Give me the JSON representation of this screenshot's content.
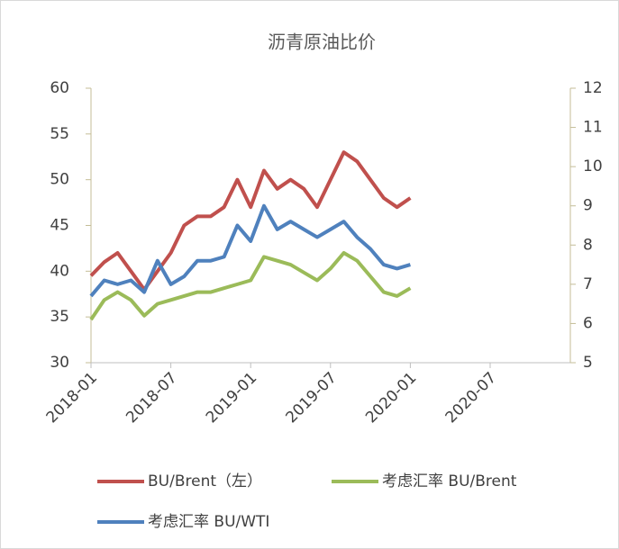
{
  "chart_data": {
    "type": "line",
    "title": "沥青原油比价",
    "x": [
      "2018-01",
      "2018-02",
      "2018-03",
      "2018-04",
      "2018-05",
      "2018-06",
      "2018-07",
      "2018-08",
      "2018-09",
      "2018-10",
      "2018-11",
      "2018-12",
      "2019-01",
      "2019-02",
      "2019-03",
      "2019-04",
      "2019-05",
      "2019-06",
      "2019-07",
      "2019-08",
      "2019-09",
      "2019-10",
      "2019-11",
      "2019-12",
      "2020-01"
    ],
    "xlim": [
      "2018-01",
      "2020-07"
    ],
    "xticks": [
      "2018-01",
      "2018-07",
      "2019-01",
      "2019-07",
      "2020-01",
      "2020-07"
    ],
    "ylim": [
      30,
      60
    ],
    "yticks": [
      30,
      35,
      40,
      45,
      50,
      55,
      60
    ],
    "y2lim": [
      5,
      12
    ],
    "y2ticks": [
      5,
      6,
      7,
      8,
      9,
      10,
      11,
      12
    ],
    "series": [
      {
        "name": "BU/Brent（左）",
        "color": "#c0504d",
        "values": [
          39.5,
          41,
          42,
          40,
          38,
          40,
          42,
          45,
          46,
          46,
          47,
          50,
          47,
          51,
          49,
          50,
          49,
          47,
          50,
          53,
          52,
          50,
          48,
          47,
          48
        ]
      },
      {
        "name": "考虑汇率 BU/Brent",
        "color": "#9bbb59",
        "axis": "y2",
        "values": [
          6.1,
          6.6,
          6.8,
          6.6,
          6.2,
          6.5,
          6.6,
          6.7,
          6.8,
          6.8,
          6.9,
          7.0,
          7.1,
          7.7,
          7.6,
          7.5,
          7.3,
          7.1,
          7.4,
          7.8,
          7.6,
          7.2,
          6.8,
          6.7,
          6.9
        ]
      },
      {
        "name": "考虑汇率 BU/WTI",
        "color": "#4f81bd",
        "axis": "y2",
        "values": [
          6.7,
          7.1,
          7.0,
          7.1,
          6.8,
          7.6,
          7.0,
          7.2,
          7.6,
          7.6,
          7.7,
          8.5,
          8.1,
          9.0,
          8.4,
          8.6,
          8.4,
          8.2,
          8.4,
          8.6,
          8.2,
          7.9,
          7.5,
          7.4,
          7.5
        ]
      }
    ]
  }
}
